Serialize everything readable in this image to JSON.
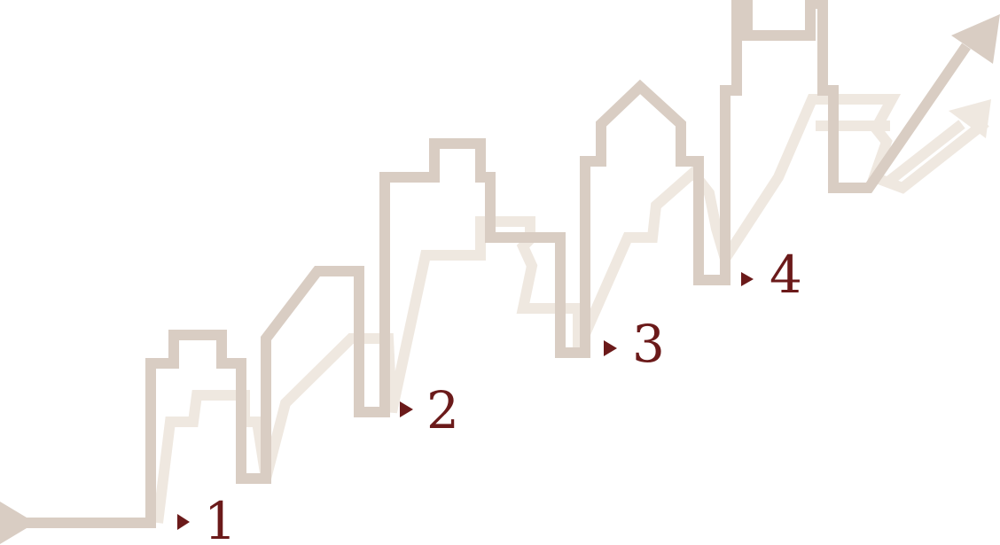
{
  "colors": {
    "skyline_main": "#d9cdc3",
    "skyline_faded": "#efe8e0",
    "label": "#6b1a1a",
    "background": "#ffffff"
  },
  "icons": {
    "start_arrow": "start-arrow-icon",
    "end_arrow": "up-right-arrow-icon",
    "marker": "triangle-marker-icon"
  },
  "steps": [
    {
      "label": "1"
    },
    {
      "label": "2"
    },
    {
      "label": "3"
    },
    {
      "label": "4"
    }
  ]
}
